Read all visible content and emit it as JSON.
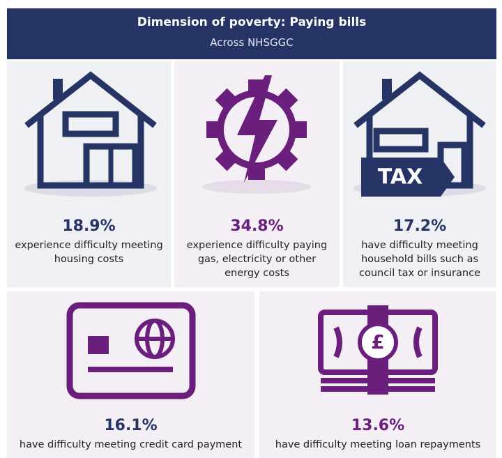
{
  "header": {
    "title": "Dimension of poverty: Paying bills",
    "subtitle": "Across NHSGGC"
  },
  "items": [
    {
      "stat": "18.9%",
      "lines": [
        "experience difficulty meeting",
        "housing costs"
      ]
    },
    {
      "stat": "34.8%",
      "lines": [
        "experience difficulty paying",
        "gas, electricity or other",
        "energy costs"
      ]
    },
    {
      "stat": "17.2%",
      "lines": [
        "have difficulty meeting",
        "household bills such as",
        "council tax or insurance"
      ],
      "tag": "TAX"
    },
    {
      "stat": "16.1%",
      "lines": [
        "have difficulty meeting credit card payment"
      ]
    },
    {
      "stat": "13.6%",
      "lines": [
        "have difficulty meeting loan repayments"
      ],
      "symbol": "£"
    }
  ]
}
